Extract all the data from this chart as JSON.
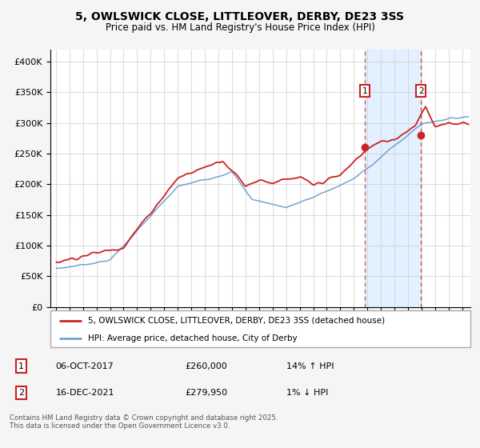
{
  "title1": "5, OWLSWICK CLOSE, LITTLEOVER, DERBY, DE23 3SS",
  "title2": "Price paid vs. HM Land Registry's House Price Index (HPI)",
  "legend1": "5, OWLSWICK CLOSE, LITTLEOVER, DERBY, DE23 3SS (detached house)",
  "legend2": "HPI: Average price, detached house, City of Derby",
  "annotation1_date": "06-OCT-2017",
  "annotation1_price": "£260,000",
  "annotation1_hpi": "14% ↑ HPI",
  "annotation2_date": "16-DEC-2021",
  "annotation2_price": "£279,950",
  "annotation2_hpi": "1% ↓ HPI",
  "footer": "Contains HM Land Registry data © Crown copyright and database right 2025.\nThis data is licensed under the Open Government Licence v3.0.",
  "ylim": [
    0,
    420000
  ],
  "background_color": "#f5f5f5",
  "plot_bg": "#ffffff",
  "red_color": "#cc2222",
  "blue_color": "#6699cc",
  "shaded_color": "#ddeeff",
  "sale1_year": 2017,
  "sale1_month": 10,
  "sale1_price": 260000,
  "sale2_year": 2021,
  "sale2_month": 12,
  "sale2_price": 279950
}
